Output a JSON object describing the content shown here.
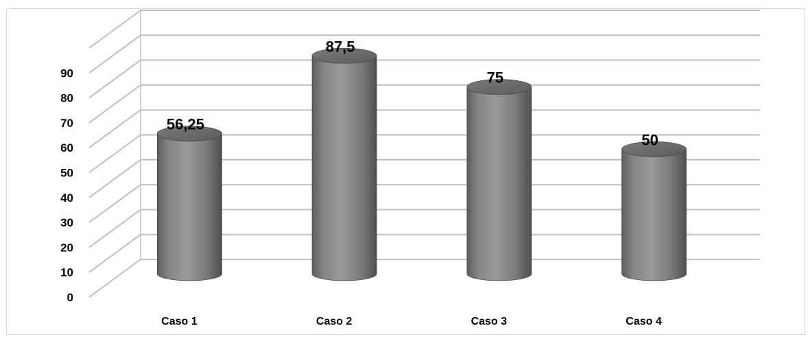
{
  "chart_data": {
    "type": "bar",
    "style": "3d-cylinder",
    "categories": [
      "Caso 1",
      "Caso 2",
      "Caso 3",
      "Caso 4"
    ],
    "values": [
      56.25,
      87.5,
      75,
      50
    ],
    "data_labels": [
      "56,25",
      "87,5",
      "75",
      "50"
    ],
    "yticks": [
      0,
      10,
      20,
      30,
      40,
      50,
      60,
      70,
      80,
      90
    ],
    "ylim": [
      0,
      100
    ],
    "grid": true,
    "legend": "none",
    "title": "",
    "xlabel": "",
    "ylabel": "",
    "colors": {
      "bar": "#8c8c8c",
      "bar_top": "#6e6e6e",
      "grid": "#bfbfbf"
    }
  }
}
